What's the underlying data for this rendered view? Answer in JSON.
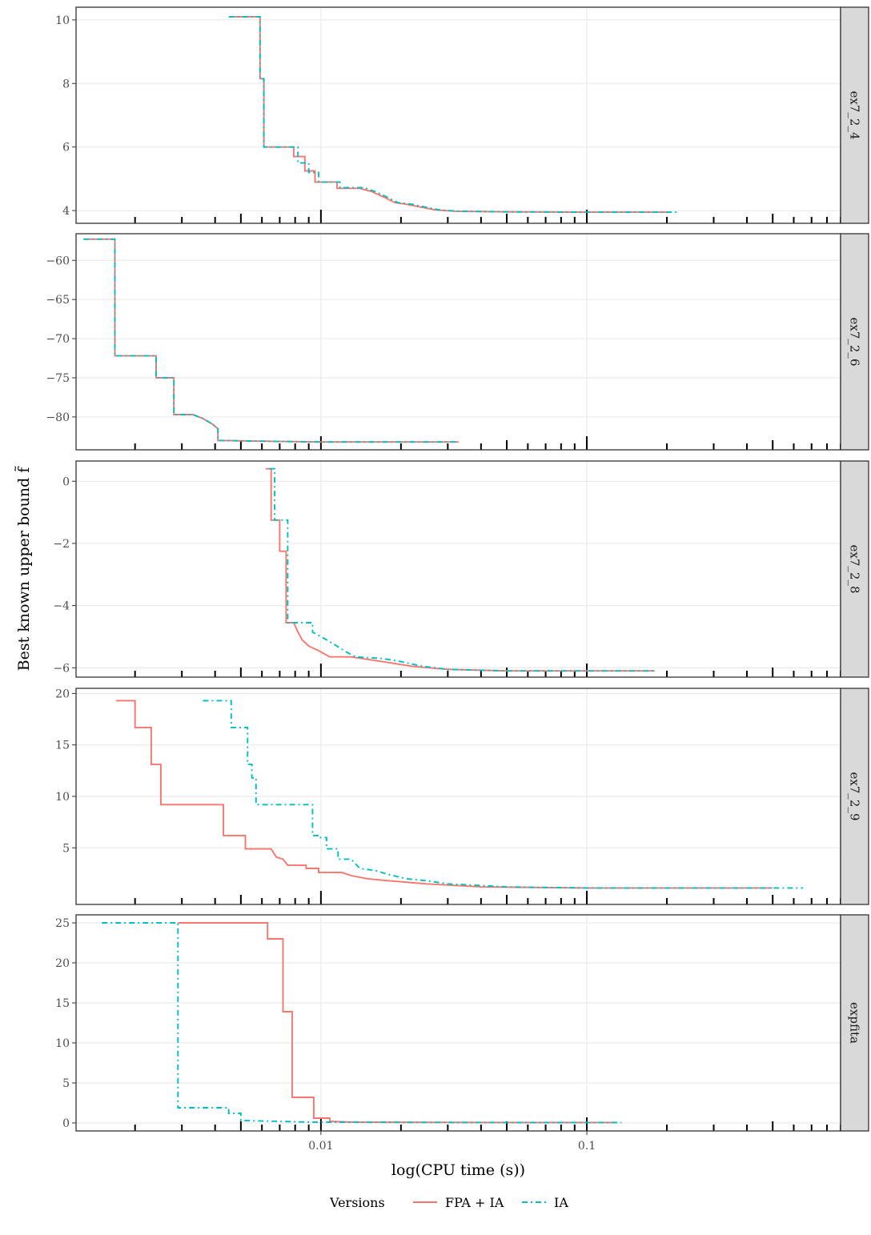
{
  "chart_data": {
    "type": "line",
    "subtype": "step",
    "xlabel": "log(CPU time (s))",
    "ylabel": "Best known upper bound f̃",
    "x_scale": "log10",
    "x_range": [
      0.0012,
      0.9
    ],
    "x_tick_labels": [
      "0.01",
      "0.1"
    ],
    "x_tick_values": [
      0.01,
      0.1
    ],
    "grid": true,
    "legend": {
      "title": "Versions",
      "position": "bottom",
      "entries": [
        {
          "name": "FPA + IA",
          "color": "#F8766D",
          "dash": "solid"
        },
        {
          "name": "IA",
          "color": "#00BFC4",
          "dash": "dashdot"
        }
      ]
    },
    "panels": [
      {
        "strip": "ex7_2_4",
        "y_range": [
          3.6,
          10.4
        ],
        "y_ticks": [
          4,
          6,
          8,
          10
        ],
        "y_tick_labels": [
          "4",
          "6",
          "8",
          "10"
        ],
        "series": [
          {
            "name": "FPA + IA",
            "points": [
              [
                0.0045,
                10.1
              ],
              [
                0.0059,
                10.1
              ],
              [
                0.0059,
                8.15
              ],
              [
                0.0061,
                8.15
              ],
              [
                0.0061,
                6.0
              ],
              [
                0.0079,
                6.0
              ],
              [
                0.0079,
                5.7
              ],
              [
                0.0087,
                5.7
              ],
              [
                0.0087,
                5.25
              ],
              [
                0.0095,
                5.25
              ],
              [
                0.0095,
                4.9
              ],
              [
                0.0115,
                4.9
              ],
              [
                0.0115,
                4.7
              ],
              [
                0.014,
                4.7
              ],
              [
                0.0155,
                4.6
              ],
              [
                0.017,
                4.45
              ],
              [
                0.019,
                4.25
              ],
              [
                0.021,
                4.2
              ],
              [
                0.024,
                4.1
              ],
              [
                0.027,
                4.02
              ],
              [
                0.032,
                3.98
              ],
              [
                0.05,
                3.96
              ],
              [
                0.1,
                3.95
              ],
              [
                0.2,
                3.95
              ]
            ]
          },
          {
            "name": "IA",
            "points": [
              [
                0.0045,
                10.1
              ],
              [
                0.0059,
                10.1
              ],
              [
                0.0059,
                8.15
              ],
              [
                0.0061,
                8.15
              ],
              [
                0.0061,
                6.0
              ],
              [
                0.0082,
                6.0
              ],
              [
                0.0082,
                5.5
              ],
              [
                0.009,
                5.5
              ],
              [
                0.009,
                5.2
              ],
              [
                0.0098,
                5.2
              ],
              [
                0.0098,
                4.9
              ],
              [
                0.0118,
                4.9
              ],
              [
                0.0118,
                4.72
              ],
              [
                0.0145,
                4.72
              ],
              [
                0.016,
                4.6
              ],
              [
                0.0175,
                4.45
              ],
              [
                0.0195,
                4.25
              ],
              [
                0.022,
                4.2
              ],
              [
                0.025,
                4.1
              ],
              [
                0.028,
                4.02
              ],
              [
                0.033,
                3.98
              ],
              [
                0.05,
                3.96
              ],
              [
                0.1,
                3.95
              ],
              [
                0.22,
                3.95
              ]
            ]
          }
        ]
      },
      {
        "strip": "ex7_2_6",
        "y_range": [
          -84.2,
          -56.6
        ],
        "y_ticks": [
          -60,
          -65,
          -70,
          -75,
          -80
        ],
        "y_tick_labels": [
          "−60",
          "−65",
          "−70",
          "−75",
          "−80"
        ],
        "series": [
          {
            "name": "FPA + IA",
            "points": [
              [
                0.00128,
                -57.3
              ],
              [
                0.00168,
                -57.3
              ],
              [
                0.00168,
                -72.2
              ],
              [
                0.0024,
                -72.2
              ],
              [
                0.0024,
                -75.0
              ],
              [
                0.0028,
                -75.0
              ],
              [
                0.0028,
                -79.7
              ],
              [
                0.0033,
                -79.7
              ],
              [
                0.0036,
                -80.2
              ],
              [
                0.0039,
                -80.9
              ],
              [
                0.0041,
                -81.5
              ],
              [
                0.0041,
                -83.0
              ],
              [
                0.006,
                -83.1
              ],
              [
                0.01,
                -83.2
              ],
              [
                0.033,
                -83.2
              ]
            ]
          },
          {
            "name": "IA",
            "points": [
              [
                0.00128,
                -57.3
              ],
              [
                0.00168,
                -57.3
              ],
              [
                0.00168,
                -72.2
              ],
              [
                0.0024,
                -72.2
              ],
              [
                0.0024,
                -75.0
              ],
              [
                0.0028,
                -75.0
              ],
              [
                0.0028,
                -79.7
              ],
              [
                0.0033,
                -79.7
              ],
              [
                0.0036,
                -80.2
              ],
              [
                0.0039,
                -80.9
              ],
              [
                0.0041,
                -81.5
              ],
              [
                0.0041,
                -83.0
              ],
              [
                0.006,
                -83.1
              ],
              [
                0.01,
                -83.2
              ],
              [
                0.033,
                -83.2
              ]
            ]
          }
        ]
      },
      {
        "strip": "ex7_2_8",
        "y_range": [
          -6.3,
          0.65
        ],
        "y_ticks": [
          0,
          -2,
          -4,
          -6
        ],
        "y_tick_labels": [
          "0",
          "−2",
          "−4",
          "−6"
        ],
        "series": [
          {
            "name": "FPA + IA",
            "points": [
              [
                0.0062,
                0.4
              ],
              [
                0.0065,
                0.4
              ],
              [
                0.0065,
                -1.25
              ],
              [
                0.007,
                -1.25
              ],
              [
                0.007,
                -2.25
              ],
              [
                0.0074,
                -2.25
              ],
              [
                0.0074,
                -4.55
              ],
              [
                0.0079,
                -4.55
              ],
              [
                0.0082,
                -4.85
              ],
              [
                0.0085,
                -5.1
              ],
              [
                0.009,
                -5.3
              ],
              [
                0.0098,
                -5.45
              ],
              [
                0.0108,
                -5.65
              ],
              [
                0.013,
                -5.65
              ],
              [
                0.017,
                -5.8
              ],
              [
                0.022,
                -5.95
              ],
              [
                0.03,
                -6.05
              ],
              [
                0.05,
                -6.1
              ],
              [
                0.18,
                -6.1
              ]
            ]
          },
          {
            "name": "IA",
            "points": [
              [
                0.0064,
                0.4
              ],
              [
                0.0067,
                0.4
              ],
              [
                0.0067,
                -1.25
              ],
              [
                0.0075,
                -1.25
              ],
              [
                0.0075,
                -4.55
              ],
              [
                0.0093,
                -4.55
              ],
              [
                0.0093,
                -4.85
              ],
              [
                0.0105,
                -5.1
              ],
              [
                0.0115,
                -5.3
              ],
              [
                0.0125,
                -5.5
              ],
              [
                0.0135,
                -5.65
              ],
              [
                0.017,
                -5.7
              ],
              [
                0.02,
                -5.8
              ],
              [
                0.024,
                -5.95
              ],
              [
                0.03,
                -6.05
              ],
              [
                0.05,
                -6.1
              ],
              [
                0.18,
                -6.1
              ]
            ]
          }
        ]
      },
      {
        "strip": "ex7_2_9",
        "y_range": [
          -0.5,
          20.5
        ],
        "y_ticks": [
          5,
          10,
          15,
          20
        ],
        "y_tick_labels": [
          "5",
          "10",
          "15",
          "20"
        ],
        "series": [
          {
            "name": "FPA + IA",
            "points": [
              [
                0.0017,
                19.3
              ],
              [
                0.002,
                19.3
              ],
              [
                0.002,
                16.7
              ],
              [
                0.0023,
                16.7
              ],
              [
                0.0023,
                13.1
              ],
              [
                0.0025,
                13.1
              ],
              [
                0.0025,
                9.2
              ],
              [
                0.0043,
                9.2
              ],
              [
                0.0043,
                6.2
              ],
              [
                0.0052,
                6.2
              ],
              [
                0.0052,
                4.9
              ],
              [
                0.0065,
                4.9
              ],
              [
                0.0068,
                4.1
              ],
              [
                0.0072,
                3.9
              ],
              [
                0.0075,
                3.3
              ],
              [
                0.0088,
                3.3
              ],
              [
                0.0088,
                3.0
              ],
              [
                0.0098,
                3.0
              ],
              [
                0.0098,
                2.6
              ],
              [
                0.012,
                2.6
              ],
              [
                0.013,
                2.3
              ],
              [
                0.015,
                2.0
              ],
              [
                0.018,
                1.8
              ],
              [
                0.025,
                1.5
              ],
              [
                0.04,
                1.2
              ],
              [
                0.1,
                1.1
              ],
              [
                0.5,
                1.1
              ]
            ]
          },
          {
            "name": "IA",
            "points": [
              [
                0.0036,
                19.3
              ],
              [
                0.0046,
                19.3
              ],
              [
                0.0046,
                16.7
              ],
              [
                0.0053,
                16.7
              ],
              [
                0.0053,
                13.1
              ],
              [
                0.0055,
                13.1
              ],
              [
                0.0055,
                11.8
              ],
              [
                0.0057,
                11.8
              ],
              [
                0.0057,
                9.2
              ],
              [
                0.0093,
                9.2
              ],
              [
                0.0093,
                6.2
              ],
              [
                0.0098,
                6.2
              ],
              [
                0.0098,
                6.0
              ],
              [
                0.0105,
                6.0
              ],
              [
                0.0105,
                4.9
              ],
              [
                0.0116,
                4.9
              ],
              [
                0.0116,
                3.9
              ],
              [
                0.013,
                3.9
              ],
              [
                0.014,
                3.0
              ],
              [
                0.016,
                2.8
              ],
              [
                0.018,
                2.4
              ],
              [
                0.021,
                2.0
              ],
              [
                0.025,
                1.8
              ],
              [
                0.03,
                1.5
              ],
              [
                0.05,
                1.2
              ],
              [
                0.1,
                1.1
              ],
              [
                0.65,
                1.1
              ]
            ]
          }
        ]
      },
      {
        "strip": "expfita",
        "y_range": [
          -1.0,
          26.0
        ],
        "y_ticks": [
          0,
          5,
          10,
          15,
          20,
          25
        ],
        "y_tick_labels": [
          "0",
          "5",
          "10",
          "15",
          "20",
          "25"
        ],
        "series": [
          {
            "name": "FPA + IA",
            "points": [
              [
                0.0029,
                25.0
              ],
              [
                0.0063,
                25.0
              ],
              [
                0.0063,
                23.0
              ],
              [
                0.0072,
                23.0
              ],
              [
                0.0072,
                13.9
              ],
              [
                0.0078,
                13.9
              ],
              [
                0.0078,
                3.2
              ],
              [
                0.0094,
                3.2
              ],
              [
                0.0094,
                0.6
              ],
              [
                0.0108,
                0.6
              ],
              [
                0.0108,
                0.2
              ],
              [
                0.013,
                0.1
              ],
              [
                0.05,
                0.05
              ],
              [
                0.13,
                0.05
              ]
            ]
          },
          {
            "name": "IA",
            "points": [
              [
                0.0015,
                25.0
              ],
              [
                0.0029,
                25.0
              ],
              [
                0.0029,
                1.9
              ],
              [
                0.0045,
                1.9
              ],
              [
                0.0045,
                1.2
              ],
              [
                0.005,
                1.2
              ],
              [
                0.005,
                0.3
              ],
              [
                0.007,
                0.2
              ],
              [
                0.009,
                0.1
              ],
              [
                0.05,
                0.05
              ],
              [
                0.135,
                0.05
              ]
            ]
          }
        ]
      }
    ]
  }
}
